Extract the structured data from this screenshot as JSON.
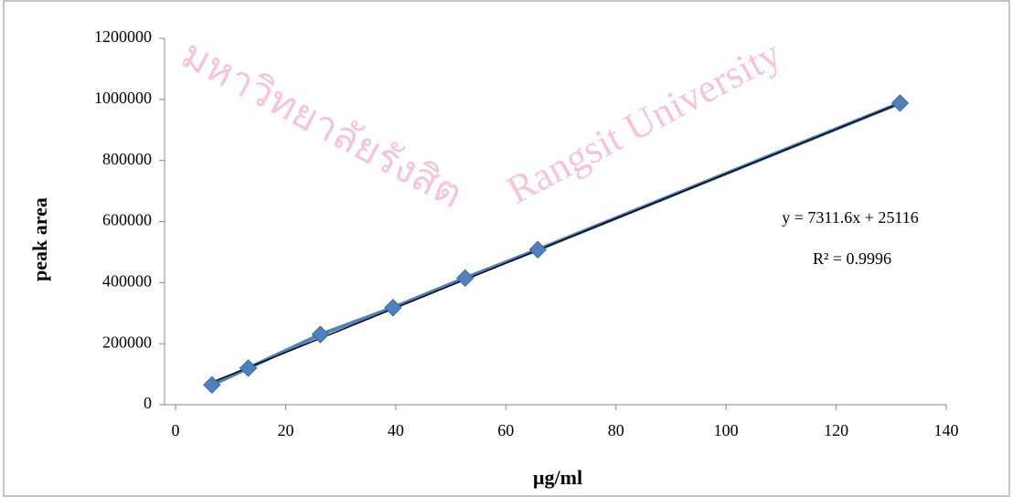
{
  "watermark": {
    "thai": "มหาวิทยาลัยรังสิต",
    "english": "Rangsit University"
  },
  "chart_data": {
    "type": "scatter",
    "x_label": "µg/ml",
    "y_label": "peak area",
    "series": [
      {
        "name": "peak area",
        "color": "#4f81bd",
        "x": [
          6.6,
          13.2,
          26.3,
          39.5,
          52.6,
          65.8,
          131.6
        ],
        "values": [
          65000,
          120000,
          230000,
          318000,
          415000,
          508000,
          988000
        ]
      }
    ],
    "trendline": {
      "slope": 7311.6,
      "intercept": 25116,
      "color": "#000000",
      "equation": "y = 7311.6x + 25116",
      "r_squared": "R² = 0.9996"
    },
    "xlim": [
      -2,
      140
    ],
    "xticks": [
      0,
      20,
      40,
      60,
      80,
      100,
      120,
      140
    ],
    "ylim": [
      0,
      1200000
    ],
    "yticks": [
      0,
      200000,
      400000,
      600000,
      800000,
      1000000,
      1200000
    ]
  }
}
